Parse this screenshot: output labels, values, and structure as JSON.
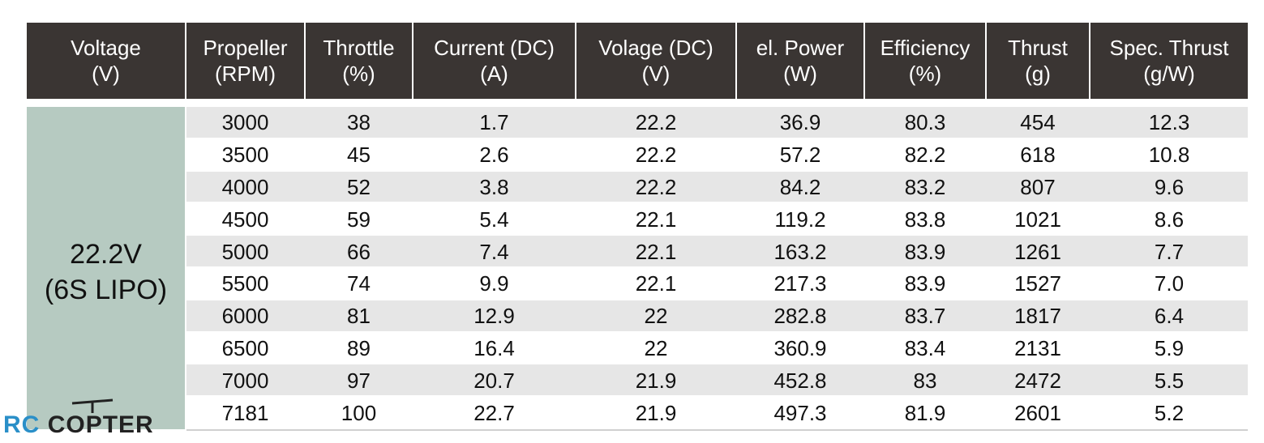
{
  "table": {
    "header": [
      [
        "Voltage",
        "(V)"
      ],
      [
        "Propeller",
        "(RPM)"
      ],
      [
        "Throttle",
        "(%)"
      ],
      [
        "Current (DC)",
        "(A)"
      ],
      [
        "Volage (DC)",
        "(V)"
      ],
      [
        "el. Power",
        "(W)"
      ],
      [
        "Efficiency",
        "(%)"
      ],
      [
        "Thrust",
        "(g)"
      ],
      [
        "Spec. Thrust",
        "(g/W)"
      ]
    ],
    "voltage": [
      "22.2V",
      "(6S LIPO)"
    ],
    "rows": [
      [
        "3000",
        "38",
        "1.7",
        "22.2",
        "36.9",
        "80.3",
        "454",
        "12.3"
      ],
      [
        "3500",
        "45",
        "2.6",
        "22.2",
        "57.2",
        "82.2",
        "618",
        "10.8"
      ],
      [
        "4000",
        "52",
        "3.8",
        "22.2",
        "84.2",
        "83.2",
        "807",
        "9.6"
      ],
      [
        "4500",
        "59",
        "5.4",
        "22.1",
        "119.2",
        "83.8",
        "1021",
        "8.6"
      ],
      [
        "5000",
        "66",
        "7.4",
        "22.1",
        "163.2",
        "83.9",
        "1261",
        "7.7"
      ],
      [
        "5500",
        "74",
        "9.9",
        "22.1",
        "217.3",
        "83.9",
        "1527",
        "7.0"
      ],
      [
        "6000",
        "81",
        "12.9",
        "22",
        "282.8",
        "83.7",
        "1817",
        "6.4"
      ],
      [
        "6500",
        "89",
        "16.4",
        "22",
        "360.9",
        "83.4",
        "2131",
        "5.9"
      ],
      [
        "7000",
        "97",
        "20.7",
        "21.9",
        "452.8",
        "83",
        "2472",
        "5.5"
      ],
      [
        "7181",
        "100",
        "22.7",
        "21.9",
        "497.3",
        "81.9",
        "2601",
        "5.2"
      ]
    ]
  },
  "logo": [
    "RC",
    "COPTER"
  ]
}
